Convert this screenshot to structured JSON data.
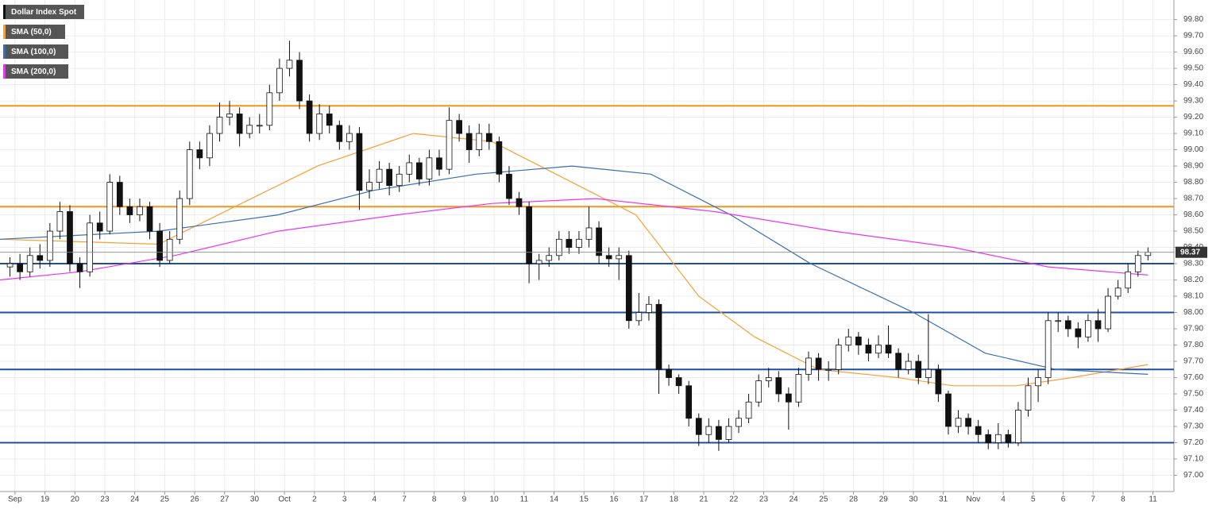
{
  "chart_data": {
    "type": "candlestick",
    "name": "Dollar Index Spot",
    "up_color": "#ffffff",
    "down_color": "#111111",
    "x": [
      0,
      1,
      2,
      3,
      4,
      5,
      6,
      7,
      8,
      9,
      10,
      11,
      12,
      13,
      14,
      15,
      16,
      17,
      18,
      19,
      20,
      21,
      22,
      23,
      24,
      25,
      26,
      27,
      28,
      29,
      30,
      31,
      32,
      33,
      34,
      35,
      36,
      37,
      38,
      39,
      40,
      41,
      42,
      43,
      44,
      45,
      46,
      47,
      48,
      49,
      50,
      51,
      52,
      53,
      54,
      55,
      56,
      57,
      58,
      59,
      60,
      61,
      62,
      63,
      64,
      65,
      66,
      67,
      68,
      69,
      70,
      71,
      72,
      73,
      74,
      75,
      76,
      77,
      78,
      79,
      80,
      81,
      82,
      83,
      84,
      85,
      86,
      87,
      88,
      89,
      90,
      91,
      92,
      93,
      94,
      95,
      96,
      97,
      98,
      99,
      100,
      101,
      102,
      103,
      104,
      105,
      106,
      107,
      108,
      109,
      110,
      111,
      112,
      113,
      114
    ],
    "ohlc": [
      [
        98.28,
        98.34,
        98.22,
        98.3
      ],
      [
        98.3,
        98.36,
        98.2,
        98.25
      ],
      [
        98.25,
        98.4,
        98.22,
        98.35
      ],
      [
        98.35,
        98.42,
        98.27,
        98.32
      ],
      [
        98.32,
        98.55,
        98.28,
        98.5
      ],
      [
        98.5,
        98.68,
        98.45,
        98.62
      ],
      [
        98.62,
        98.66,
        98.25,
        98.3
      ],
      [
        98.3,
        98.34,
        98.15,
        98.25
      ],
      [
        98.25,
        98.6,
        98.22,
        98.55
      ],
      [
        98.55,
        98.62,
        98.45,
        98.5
      ],
      [
        98.5,
        98.85,
        98.48,
        98.8
      ],
      [
        98.8,
        98.84,
        98.6,
        98.65
      ],
      [
        98.65,
        98.7,
        98.55,
        98.6
      ],
      [
        98.6,
        98.7,
        98.56,
        98.65
      ],
      [
        98.65,
        98.68,
        98.45,
        98.5
      ],
      [
        98.5,
        98.55,
        98.28,
        98.32
      ],
      [
        98.32,
        98.5,
        98.3,
        98.45
      ],
      [
        98.45,
        98.75,
        98.42,
        98.7
      ],
      [
        98.7,
        99.05,
        98.66,
        99.0
      ],
      [
        99.0,
        99.05,
        98.88,
        98.95
      ],
      [
        98.95,
        99.15,
        98.9,
        99.1
      ],
      [
        99.1,
        99.29,
        99.05,
        99.2
      ],
      [
        99.2,
        99.3,
        99.15,
        99.22
      ],
      [
        99.22,
        99.26,
        99.02,
        99.1
      ],
      [
        99.1,
        99.2,
        99.07,
        99.15
      ],
      [
        99.15,
        99.22,
        99.1,
        99.15
      ],
      [
        99.15,
        99.4,
        99.12,
        99.35
      ],
      [
        99.35,
        99.56,
        99.3,
        99.5
      ],
      [
        99.5,
        99.67,
        99.45,
        99.55
      ],
      [
        99.55,
        99.6,
        99.25,
        99.3
      ],
      [
        99.3,
        99.34,
        99.05,
        99.1
      ],
      [
        99.1,
        99.28,
        99.06,
        99.22
      ],
      [
        99.22,
        99.27,
        99.1,
        99.15
      ],
      [
        99.15,
        99.18,
        99.0,
        99.05
      ],
      [
        99.05,
        99.15,
        99.0,
        99.1
      ],
      [
        99.1,
        99.14,
        98.63,
        98.75
      ],
      [
        98.75,
        98.88,
        98.7,
        98.8
      ],
      [
        98.8,
        98.93,
        98.76,
        98.88
      ],
      [
        98.88,
        98.92,
        98.72,
        98.78
      ],
      [
        98.78,
        98.9,
        98.74,
        98.85
      ],
      [
        98.85,
        98.97,
        98.8,
        98.92
      ],
      [
        98.92,
        98.95,
        98.78,
        98.82
      ],
      [
        98.82,
        99.0,
        98.78,
        98.95
      ],
      [
        98.95,
        99.0,
        98.84,
        98.88
      ],
      [
        98.88,
        99.26,
        98.85,
        99.18
      ],
      [
        99.18,
        99.22,
        99.05,
        99.1
      ],
      [
        99.1,
        99.15,
        98.92,
        99.0
      ],
      [
        99.0,
        99.16,
        98.96,
        99.1
      ],
      [
        99.1,
        99.16,
        99.0,
        99.05
      ],
      [
        99.05,
        99.08,
        98.8,
        98.85
      ],
      [
        98.85,
        98.9,
        98.66,
        98.7
      ],
      [
        98.7,
        98.74,
        98.6,
        98.65
      ],
      [
        98.65,
        98.68,
        98.18,
        98.3
      ],
      [
        98.3,
        98.36,
        98.2,
        98.32
      ],
      [
        98.32,
        98.4,
        98.28,
        98.35
      ],
      [
        98.35,
        98.5,
        98.32,
        98.45
      ],
      [
        98.45,
        98.5,
        98.36,
        98.4
      ],
      [
        98.4,
        98.5,
        98.36,
        98.45
      ],
      [
        98.45,
        98.65,
        98.4,
        98.52
      ],
      [
        98.52,
        98.56,
        98.3,
        98.35
      ],
      [
        98.35,
        98.4,
        98.28,
        98.33
      ],
      [
        98.33,
        98.4,
        98.2,
        98.35
      ],
      [
        98.35,
        98.38,
        97.9,
        97.95
      ],
      [
        97.95,
        98.12,
        97.92,
        98.0
      ],
      [
        98.0,
        98.1,
        97.95,
        98.05
      ],
      [
        98.05,
        98.08,
        97.5,
        97.65
      ],
      [
        97.65,
        97.68,
        97.55,
        97.6
      ],
      [
        97.6,
        97.62,
        97.5,
        97.55
      ],
      [
        97.55,
        97.58,
        97.3,
        97.35
      ],
      [
        97.35,
        97.38,
        97.18,
        97.25
      ],
      [
        97.25,
        97.35,
        97.2,
        97.3
      ],
      [
        97.3,
        97.34,
        97.15,
        97.22
      ],
      [
        97.22,
        97.35,
        97.2,
        97.3
      ],
      [
        97.3,
        97.4,
        97.26,
        97.35
      ],
      [
        97.35,
        97.5,
        97.32,
        97.45
      ],
      [
        97.45,
        97.62,
        97.42,
        97.58
      ],
      [
        97.58,
        97.66,
        97.54,
        97.6
      ],
      [
        97.6,
        97.64,
        97.45,
        97.5
      ],
      [
        97.5,
        97.54,
        97.28,
        97.45
      ],
      [
        97.45,
        97.66,
        97.42,
        97.62
      ],
      [
        97.62,
        97.76,
        97.58,
        97.72
      ],
      [
        97.72,
        97.75,
        97.58,
        97.65
      ],
      [
        97.65,
        97.7,
        97.58,
        97.65
      ],
      [
        97.65,
        97.84,
        97.62,
        97.8
      ],
      [
        97.8,
        97.9,
        97.76,
        97.85
      ],
      [
        97.85,
        97.88,
        97.74,
        97.8
      ],
      [
        97.8,
        97.84,
        97.7,
        97.75
      ],
      [
        97.75,
        97.86,
        97.72,
        97.8
      ],
      [
        97.8,
        97.92,
        97.72,
        97.75
      ],
      [
        97.75,
        97.78,
        97.6,
        97.65
      ],
      [
        97.65,
        97.75,
        97.62,
        97.7
      ],
      [
        97.7,
        97.74,
        97.56,
        97.6
      ],
      [
        97.6,
        97.99,
        97.56,
        97.65
      ],
      [
        97.65,
        97.68,
        97.45,
        97.5
      ],
      [
        97.5,
        97.52,
        97.25,
        97.3
      ],
      [
        97.3,
        97.4,
        97.26,
        97.35
      ],
      [
        97.35,
        97.38,
        97.25,
        97.3
      ],
      [
        97.3,
        97.34,
        97.2,
        97.25
      ],
      [
        97.25,
        97.28,
        97.16,
        97.2
      ],
      [
        97.2,
        97.32,
        97.16,
        97.25
      ],
      [
        97.25,
        97.28,
        97.17,
        97.2
      ],
      [
        97.2,
        97.45,
        97.18,
        97.4
      ],
      [
        97.4,
        97.6,
        97.36,
        97.55
      ],
      [
        97.55,
        97.65,
        97.45,
        97.6
      ],
      [
        97.6,
        98.0,
        97.56,
        97.95
      ],
      [
        97.95,
        98.0,
        97.88,
        97.95
      ],
      [
        97.95,
        97.98,
        97.85,
        97.9
      ],
      [
        97.9,
        97.94,
        97.78,
        97.85
      ],
      [
        97.85,
        97.99,
        97.82,
        97.95
      ],
      [
        97.95,
        98.02,
        97.82,
        97.9
      ],
      [
        97.9,
        98.15,
        97.88,
        98.1
      ],
      [
        98.1,
        98.2,
        98.08,
        98.15
      ],
      [
        98.15,
        98.3,
        98.12,
        98.25
      ],
      [
        98.25,
        98.38,
        98.22,
        98.35
      ],
      [
        98.35,
        98.4,
        98.32,
        98.37
      ]
    ],
    "series": [
      {
        "name": "SMA (50,0)",
        "color": "#f7a035",
        "x": [
          -1,
          14.9,
          30.8,
          40.4,
          48.3,
          54.7,
          62.7,
          69,
          74.6,
          81,
          88.9,
          94.5,
          100.8,
          106.4,
          114
        ],
        "values": [
          98.45,
          98.42,
          98.9,
          99.1,
          99.05,
          98.85,
          98.6,
          98.1,
          97.85,
          97.65,
          97.6,
          97.55,
          97.55,
          97.6,
          97.68
        ]
      },
      {
        "name": "SMA (100,0)",
        "color": "#3a6fb0",
        "x": [
          -1,
          14.9,
          26.85,
          36.4,
          46.7,
          56.3,
          64.2,
          72.2,
          80.2,
          90.5,
          97.7,
          104.8,
          114
        ],
        "values": [
          98.45,
          98.5,
          98.6,
          98.75,
          98.85,
          98.9,
          98.85,
          98.6,
          98.3,
          98.0,
          97.75,
          97.65,
          97.62
        ]
      },
      {
        "name": "SMA (200,0)",
        "color": "#ee33ee",
        "x": [
          -1,
          6.96,
          16.5,
          26.85,
          38.8,
          48.3,
          58.7,
          70.6,
          82.5,
          94.5,
          104,
          114
        ],
        "values": [
          98.2,
          98.25,
          98.35,
          98.5,
          98.6,
          98.67,
          98.7,
          98.62,
          98.5,
          98.4,
          98.28,
          98.23
        ]
      }
    ],
    "levels": [
      {
        "value": 99.27,
        "color": "#f0961e"
      },
      {
        "value": 98.65,
        "color": "#f0961e"
      },
      {
        "value": 98.3,
        "color": "#1f4e9c"
      },
      {
        "value": 98.0,
        "color": "#1f4e9c"
      },
      {
        "value": 97.65,
        "color": "#1f4e9c"
      },
      {
        "value": 97.2,
        "color": "#1f4e9c"
      }
    ],
    "last_price": 98.37,
    "xlim": [
      -1,
      116.6
    ],
    "ylim": [
      96.9,
      99.92
    ],
    "grid": true,
    "xticks": [
      {
        "value": 0.5,
        "label": "Sep"
      },
      {
        "value": 3.5,
        "label": "19"
      },
      {
        "value": 6.5,
        "label": "20"
      },
      {
        "value": 9.5,
        "label": "23"
      },
      {
        "value": 12.5,
        "label": "24"
      },
      {
        "value": 15.5,
        "label": "25"
      },
      {
        "value": 18.5,
        "label": "26"
      },
      {
        "value": 21.5,
        "label": "27"
      },
      {
        "value": 24.5,
        "label": "30"
      },
      {
        "value": 27.5,
        "label": "Oct"
      },
      {
        "value": 30.5,
        "label": "2"
      },
      {
        "value": 33.5,
        "label": "3"
      },
      {
        "value": 36.5,
        "label": "4"
      },
      {
        "value": 39.5,
        "label": "7"
      },
      {
        "value": 42.5,
        "label": "8"
      },
      {
        "value": 45.5,
        "label": "9"
      },
      {
        "value": 48.5,
        "label": "10"
      },
      {
        "value": 51.5,
        "label": "11"
      },
      {
        "value": 54.5,
        "label": "14"
      },
      {
        "value": 57.5,
        "label": "15"
      },
      {
        "value": 60.5,
        "label": "16"
      },
      {
        "value": 63.5,
        "label": "17"
      },
      {
        "value": 66.5,
        "label": "18"
      },
      {
        "value": 69.5,
        "label": "21"
      },
      {
        "value": 72.5,
        "label": "22"
      },
      {
        "value": 75.5,
        "label": "23"
      },
      {
        "value": 78.5,
        "label": "24"
      },
      {
        "value": 81.5,
        "label": "25"
      },
      {
        "value": 84.5,
        "label": "28"
      },
      {
        "value": 87.5,
        "label": "29"
      },
      {
        "value": 90.5,
        "label": "30"
      },
      {
        "value": 93.5,
        "label": "31"
      },
      {
        "value": 96.5,
        "label": "Nov"
      },
      {
        "value": 99.5,
        "label": "4"
      },
      {
        "value": 102.5,
        "label": "5"
      },
      {
        "value": 105.5,
        "label": "6"
      },
      {
        "value": 108.5,
        "label": "7"
      },
      {
        "value": 111.5,
        "label": "8"
      },
      {
        "value": 114.5,
        "label": "11"
      }
    ],
    "yticks": [
      {
        "value": 97.0,
        "label": "97.00"
      },
      {
        "value": 97.1,
        "label": "97.10"
      },
      {
        "value": 97.2,
        "label": "97.20"
      },
      {
        "value": 97.3,
        "label": "97.30"
      },
      {
        "value": 97.4,
        "label": "97.40"
      },
      {
        "value": 97.5,
        "label": "97.50"
      },
      {
        "value": 97.6,
        "label": "97.60"
      },
      {
        "value": 97.7,
        "label": "97.70"
      },
      {
        "value": 97.8,
        "label": "97.80"
      },
      {
        "value": 97.9,
        "label": "97.90"
      },
      {
        "value": 98.0,
        "label": "98.00"
      },
      {
        "value": 98.1,
        "label": "98.10"
      },
      {
        "value": 98.2,
        "label": "98.20"
      },
      {
        "value": 98.3,
        "label": "98.30"
      },
      {
        "value": 98.4,
        "label": "98.40"
      },
      {
        "value": 98.5,
        "label": "98.50"
      },
      {
        "value": 98.6,
        "label": "98.60"
      },
      {
        "value": 98.7,
        "label": "98.70"
      },
      {
        "value": 98.8,
        "label": "98.80"
      },
      {
        "value": 98.9,
        "label": "98.90"
      },
      {
        "value": 99.0,
        "label": "99.00"
      },
      {
        "value": 99.1,
        "label": "99.10"
      },
      {
        "value": 99.2,
        "label": "99.20"
      },
      {
        "value": 99.3,
        "label": "99.30"
      },
      {
        "value": 99.4,
        "label": "99.40"
      },
      {
        "value": 99.5,
        "label": "99.50"
      },
      {
        "value": 99.6,
        "label": "99.60"
      },
      {
        "value": 99.7,
        "label": "99.70"
      },
      {
        "value": 99.8,
        "label": "99.80"
      }
    ]
  }
}
